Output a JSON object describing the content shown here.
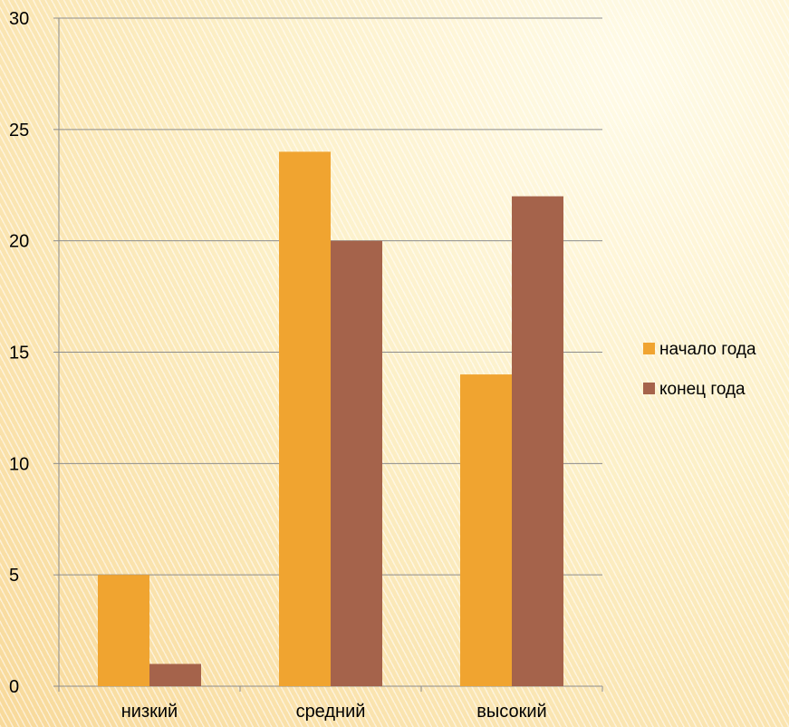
{
  "chart_data": {
    "type": "bar",
    "categories": [
      "низкий",
      "средний",
      "высокий"
    ],
    "series": [
      {
        "name": "начало года",
        "values": [
          5,
          24,
          14
        ],
        "color": "#f0a430"
      },
      {
        "name": "конец года",
        "values": [
          1,
          20,
          22
        ],
        "color": "#a5634b"
      }
    ],
    "title": "",
    "xlabel": "",
    "ylabel": "",
    "ylim": [
      0,
      30
    ],
    "yticks": [
      "0",
      "5",
      "10",
      "15",
      "20",
      "25",
      "30"
    ],
    "grid": true,
    "legend": "right"
  }
}
